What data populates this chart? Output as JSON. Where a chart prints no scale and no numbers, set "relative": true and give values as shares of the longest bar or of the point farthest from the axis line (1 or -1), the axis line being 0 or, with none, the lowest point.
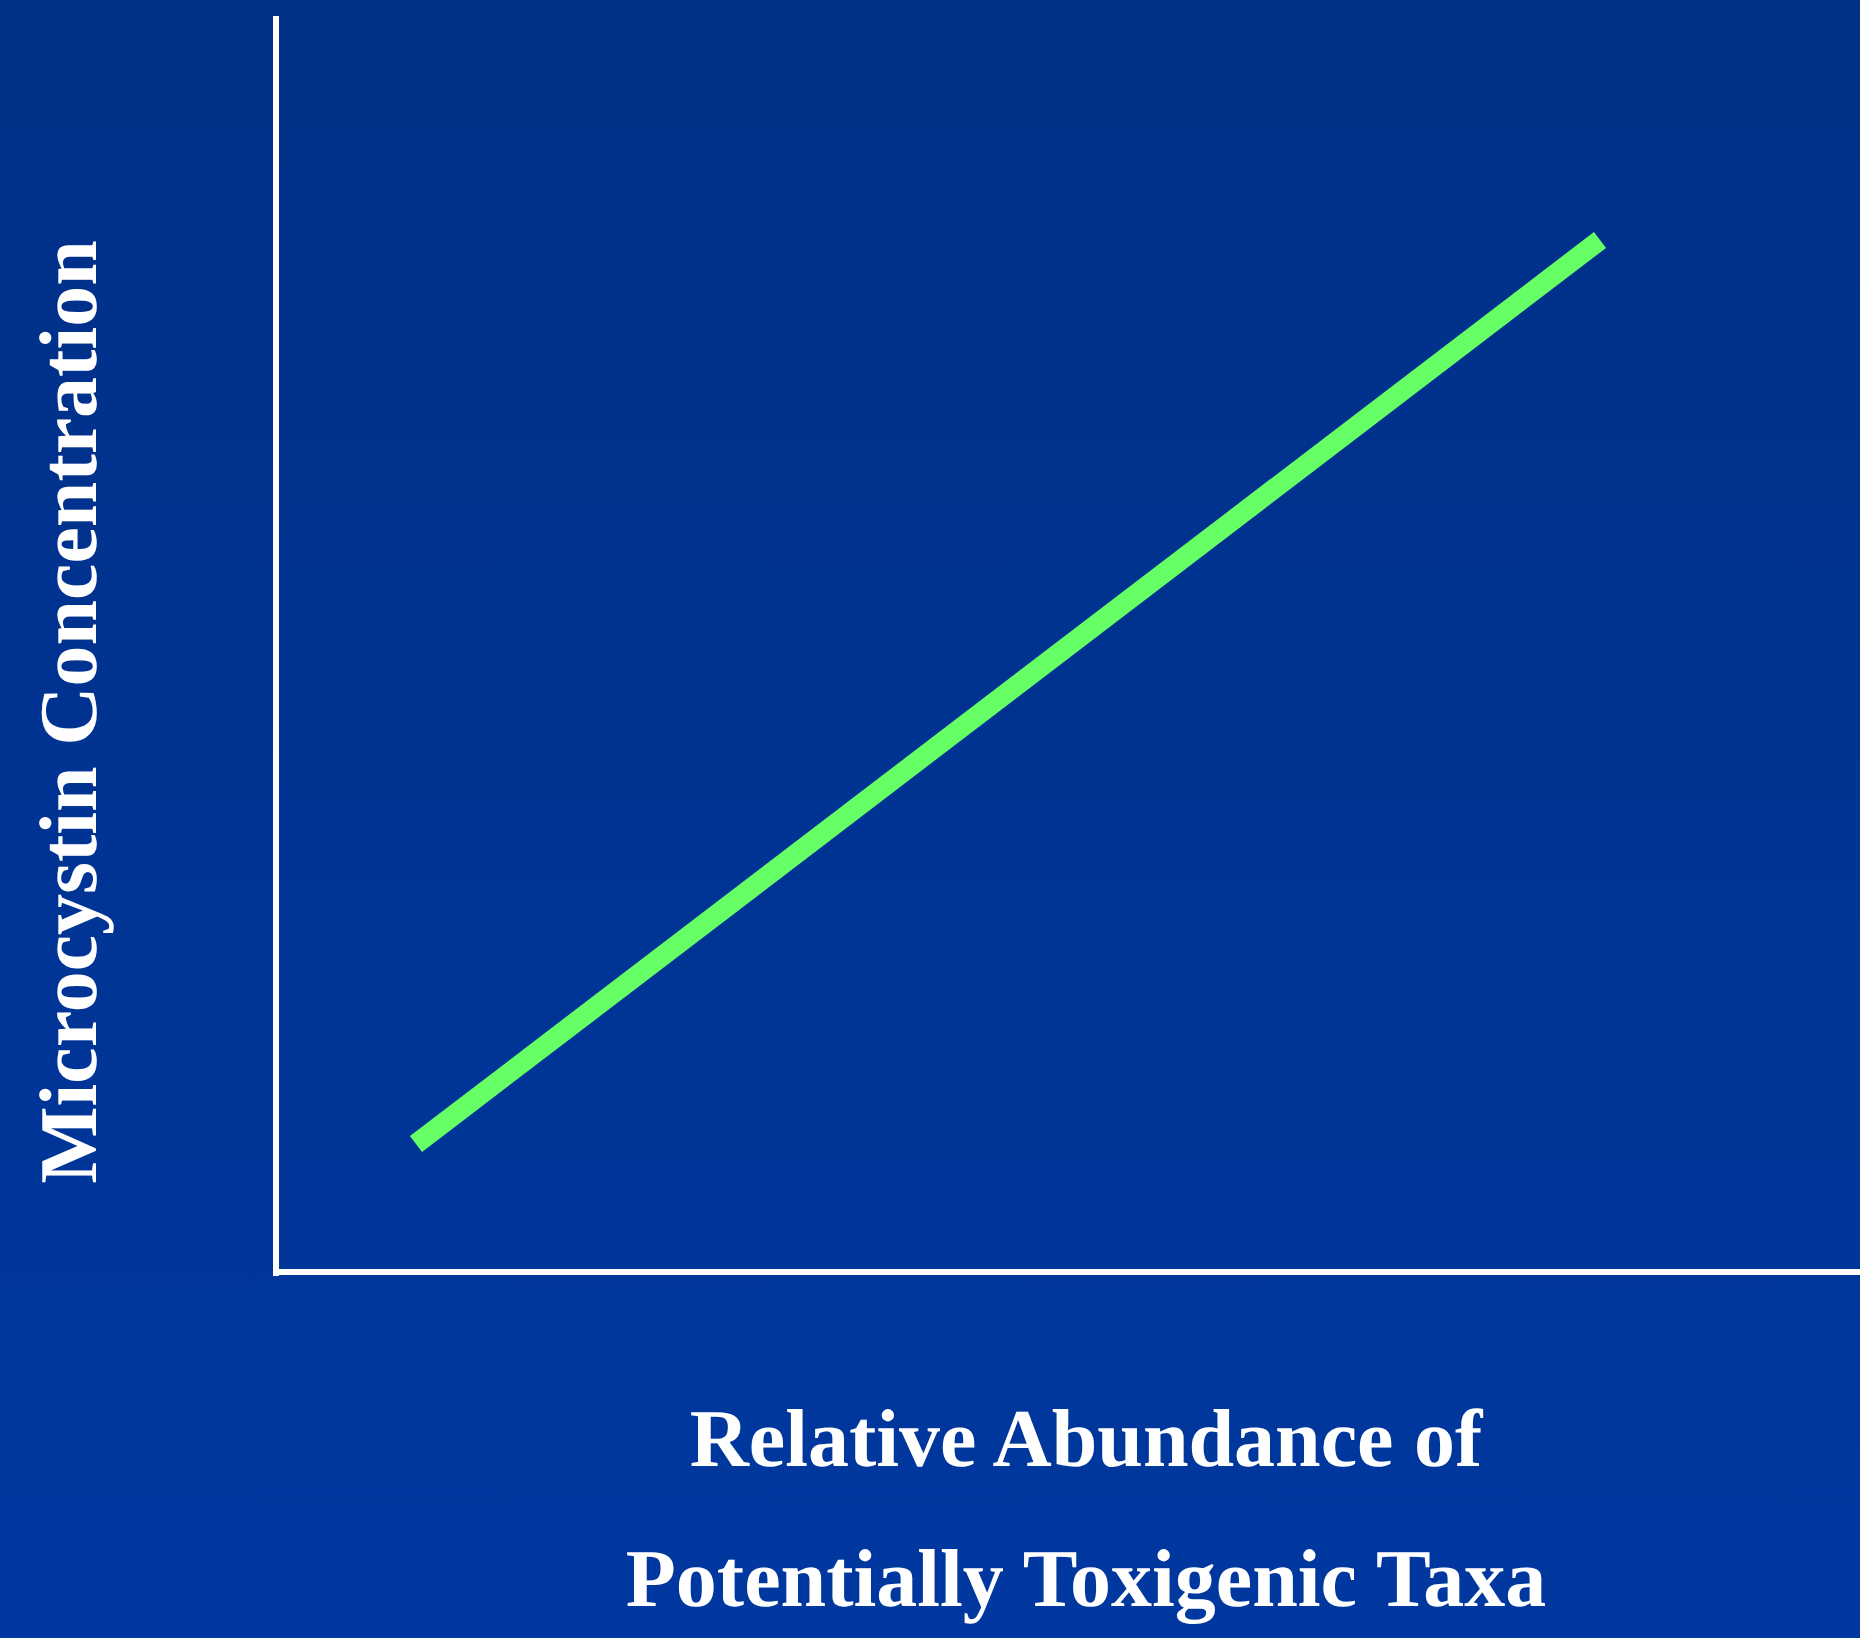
{
  "chart_data": {
    "type": "line",
    "xlabel": "Relative Abundance of\nPotentially Toxigenic Taxa",
    "ylabel": "Microcystin Concentration",
    "categories": [
      null,
      null
    ],
    "relative": true,
    "marker": "none",
    "line_style": "solid",
    "series": [
      {
        "color": "#66ff66",
        "values": [
          0.124,
          1
        ]
      }
    ]
  }
}
